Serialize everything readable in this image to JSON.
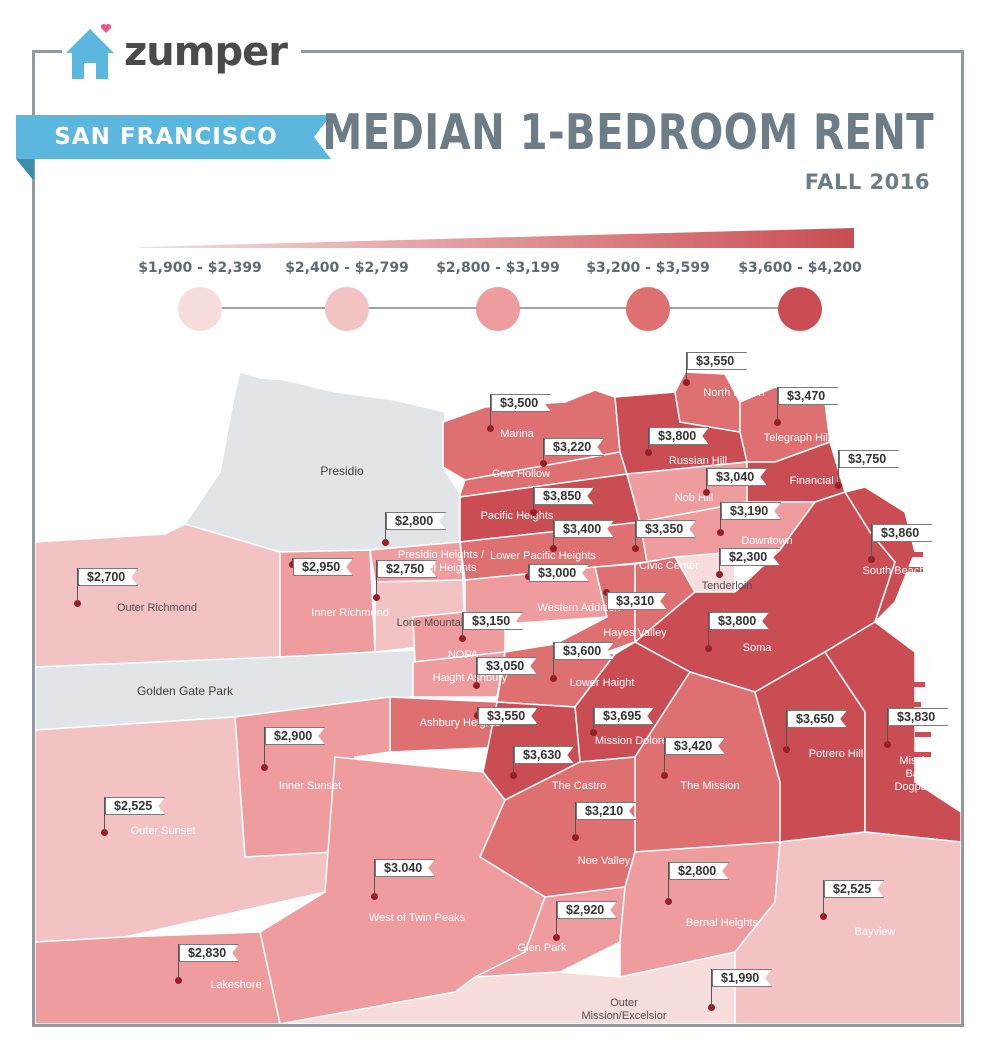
{
  "brand": {
    "name": "zumper",
    "icon": "house-heart-icon"
  },
  "header": {
    "city": "SAN FRANCISCO",
    "title": "MEDIAN 1-BEDROOM RENT",
    "season": "FALL 2016"
  },
  "colors": {
    "title": "#6d7d87",
    "city_banner": "#5bb7dd",
    "city_banner_shadow": "#3d8eae",
    "frame": "#8f9aa1",
    "park": "#e1e5e8",
    "pin": "#9b1b22"
  },
  "legend": [
    {
      "label": "$1,900 - $2,399",
      "color": "#f8dddd"
    },
    {
      "label": "$2,400 - $2,799",
      "color": "#f3c2c2"
    },
    {
      "label": "$2,800 - $3,199",
      "color": "#ee9c9d"
    },
    {
      "label": "$3,200 - $3,599",
      "color": "#de7072"
    },
    {
      "label": "$3,600 - $4,200",
      "color": "#c94d52"
    }
  ],
  "parks": {
    "presidio": "Presidio",
    "golden_gate": "Golden Gate Park"
  },
  "neighborhoods": [
    {
      "name": "North Beach",
      "rent": "$3,550"
    },
    {
      "name": "Telegraph Hill",
      "rent": "$3,470"
    },
    {
      "name": "Marina",
      "rent": "$3,500"
    },
    {
      "name": "Russian Hill",
      "rent": "$3,800"
    },
    {
      "name": "Cow Hollow",
      "rent": "$3,220"
    },
    {
      "name": "Financial District",
      "rent": "$3,750"
    },
    {
      "name": "Nob Hill",
      "rent": "$3,040"
    },
    {
      "name": "Pacific Heights",
      "rent": "$3,850"
    },
    {
      "name": "Downtown",
      "rent": "$3,190"
    },
    {
      "name": "Presidio Heights / Laurel Heights",
      "rent": "$2,800"
    },
    {
      "name": "South Beach",
      "rent": "$3,860"
    },
    {
      "name": "Lower Pacific Heights",
      "rent": "$3,400"
    },
    {
      "name": "Civic Center",
      "rent": "$3,350"
    },
    {
      "name": "Tenderloin",
      "rent": "$2,300"
    },
    {
      "name": "Outer Richmond",
      "rent": "$2,700"
    },
    {
      "name": "Inner Richmond",
      "rent": "$2,950"
    },
    {
      "name": "Western Addition",
      "rent": "$3,000"
    },
    {
      "name": "Lone Mountain",
      "rent": "$2,750"
    },
    {
      "name": "Hayes Valley",
      "rent": "$3,310"
    },
    {
      "name": "NOPA",
      "rent": "$3,150"
    },
    {
      "name": "Soma",
      "rent": "$3,800"
    },
    {
      "name": "Lower Haight",
      "rent": "$3,600"
    },
    {
      "name": "Haight Ashbury",
      "rent": "$3,050"
    },
    {
      "name": "Ashbury Heights",
      "rent": "$3,550"
    },
    {
      "name": "Mission Dolores",
      "rent": "$3,695"
    },
    {
      "name": "Potrero Hill",
      "rent": "$3,650"
    },
    {
      "name": "Mission Bay / Dogpatch",
      "rent": "$3,830"
    },
    {
      "name": "Inner Sunset",
      "rent": "$2,900"
    },
    {
      "name": "The Mission",
      "rent": "$3,420"
    },
    {
      "name": "The Castro",
      "rent": "$3,630"
    },
    {
      "name": "Outer Sunset",
      "rent": "$2,525"
    },
    {
      "name": "Noe Valley",
      "rent": "$3,210"
    },
    {
      "name": "West of Twin Peaks",
      "rent": "$3.040"
    },
    {
      "name": "Bernal Heights",
      "rent": "$2,800"
    },
    {
      "name": "Bayview",
      "rent": "$2,525"
    },
    {
      "name": "Glen Park",
      "rent": "$2,920"
    },
    {
      "name": "Lakeshore",
      "rent": "$2,830"
    },
    {
      "name": "Outer Mission/Excelsior",
      "rent": "$1,990"
    }
  ]
}
